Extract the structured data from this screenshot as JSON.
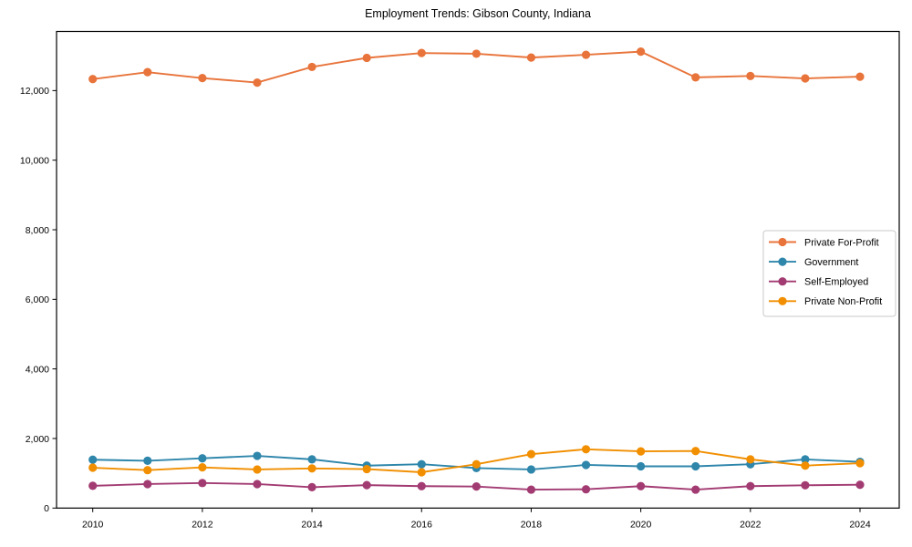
{
  "chart_data": {
    "type": "line",
    "title": "Employment Trends: Gibson County, Indiana",
    "xlabel": "",
    "ylabel": "",
    "x": [
      2010,
      2011,
      2012,
      2013,
      2014,
      2015,
      2016,
      2017,
      2018,
      2019,
      2020,
      2021,
      2022,
      2023,
      2024
    ],
    "series": [
      {
        "name": "Private For-Profit",
        "color": "#E8743B",
        "values": [
          12330,
          12530,
          12360,
          12230,
          12680,
          12940,
          13080,
          13060,
          12950,
          13030,
          13120,
          12380,
          12420,
          12350,
          12400
        ]
      },
      {
        "name": "Government",
        "color": "#2E86AB",
        "values": [
          1390,
          1360,
          1430,
          1500,
          1400,
          1220,
          1260,
          1150,
          1110,
          1240,
          1200,
          1200,
          1260,
          1400,
          1330
        ]
      },
      {
        "name": "Self-Employed",
        "color": "#A23B72",
        "values": [
          640,
          690,
          720,
          690,
          600,
          660,
          630,
          620,
          530,
          540,
          630,
          530,
          630,
          655,
          670
        ]
      },
      {
        "name": "Private Non-Profit",
        "color": "#F18F01",
        "values": [
          1160,
          1090,
          1170,
          1110,
          1140,
          1120,
          1030,
          1260,
          1550,
          1690,
          1630,
          1640,
          1400,
          1220,
          1290
        ]
      }
    ],
    "xticks": [
      2010,
      2012,
      2014,
      2016,
      2018,
      2020,
      2022,
      2024
    ],
    "yticks": [
      0,
      2000,
      4000,
      6000,
      8000,
      10000,
      12000
    ],
    "ytick_labels": [
      "0",
      "2,000",
      "4,000",
      "6,000",
      "8,000",
      "10,000",
      "12,000"
    ],
    "ylim": [
      0,
      13700
    ],
    "grid": false,
    "legend_position": "right",
    "marker": "circle",
    "axis_color": "#000000",
    "background_color": "#ffffff",
    "legend_border_color": "#c9c9c9"
  }
}
